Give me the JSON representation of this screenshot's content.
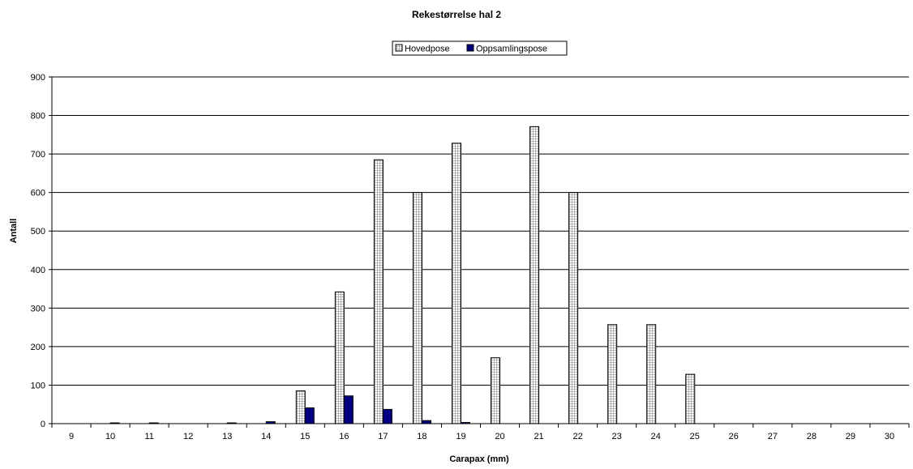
{
  "chart_data": {
    "type": "bar",
    "title": "Rekestørrelse hal 2",
    "xlabel": "Carapax (mm)",
    "ylabel": "Antall",
    "categories": [
      "9",
      "10",
      "11",
      "12",
      "13",
      "14",
      "15",
      "16",
      "17",
      "18",
      "19",
      "20",
      "21",
      "22",
      "23",
      "24",
      "25",
      "26",
      "27",
      "28",
      "29",
      "30"
    ],
    "series": [
      {
        "name": "Hovedpose",
        "color": "#ffffff",
        "pattern": "grid",
        "values": [
          0,
          0,
          0,
          0,
          0,
          0,
          85,
          342,
          685,
          600,
          728,
          171,
          771,
          600,
          257,
          257,
          128,
          0,
          0,
          0,
          0,
          0
        ]
      },
      {
        "name": "Oppsamlingspose",
        "color": "#000080",
        "pattern": "solid",
        "values": [
          0,
          2,
          2,
          0,
          2,
          5,
          41,
          72,
          37,
          8,
          3,
          0,
          0,
          0,
          0,
          0,
          0,
          0,
          0,
          0,
          0,
          0
        ]
      }
    ],
    "ylim": [
      0,
      900
    ],
    "yticks": [
      "0",
      "100",
      "200",
      "300",
      "400",
      "500",
      "600",
      "700",
      "800",
      "900"
    ],
    "grid": true,
    "legend_position": "top-center"
  }
}
